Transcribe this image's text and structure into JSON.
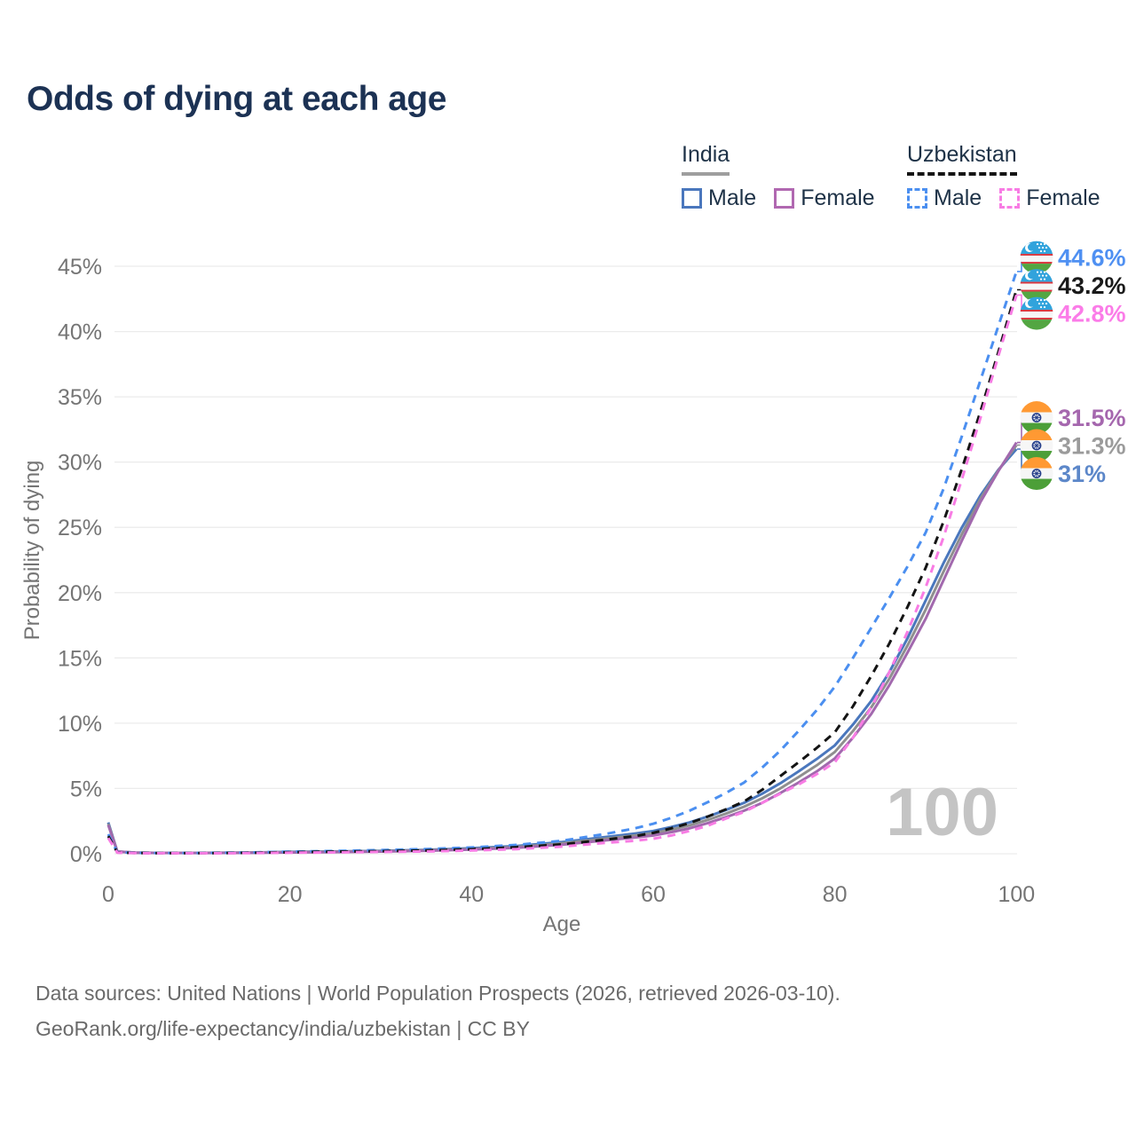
{
  "title": {
    "text": "Odds of dying at each age",
    "color": "#1c3254"
  },
  "legend": {
    "groups": [
      {
        "id": "india",
        "label": "India",
        "underline": "solid",
        "underline_color": "#9e9e9e",
        "items": [
          {
            "label": "Male",
            "box_color": "#4a77bd",
            "box_style": "solid"
          },
          {
            "label": "Female",
            "box_color": "#b168b1",
            "box_style": "solid"
          }
        ]
      },
      {
        "id": "uzbekistan",
        "label": "Uzbekistan",
        "underline": "dashed",
        "underline_color": "#151515",
        "items": [
          {
            "label": "Male",
            "box_color": "#4b8ff0",
            "box_style": "dashed"
          },
          {
            "label": "Female",
            "box_color": "#f87ce4",
            "box_style": "dashed"
          }
        ]
      }
    ]
  },
  "chart_data": {
    "type": "line",
    "title": "Odds of dying at each age",
    "xlabel": "Age",
    "ylabel": "Probability of dying",
    "xlim": [
      0,
      100
    ],
    "ylim": [
      0,
      45
    ],
    "x_ticks": [
      0,
      20,
      40,
      60,
      80,
      100
    ],
    "y_tick_step": 5,
    "y_tick_suffix": "%",
    "grid": "horizontal",
    "gridline_color": "#ececec",
    "tick_color": "#757575",
    "watermark": "100",
    "watermark_color": "#c4c4c4",
    "legend_position": "top-right",
    "series": [
      {
        "name": "india-male",
        "country": "india",
        "sex": "male",
        "color": "#4a77bd",
        "dashed": false,
        "end_label": {
          "text": "31%",
          "color": "#5c87c9",
          "flag": "india"
        },
        "points": [
          [
            0,
            2.4
          ],
          [
            1,
            0.16
          ],
          [
            3,
            0.08
          ],
          [
            5,
            0.07
          ],
          [
            10,
            0.07
          ],
          [
            15,
            0.09
          ],
          [
            20,
            0.14
          ],
          [
            25,
            0.18
          ],
          [
            30,
            0.22
          ],
          [
            35,
            0.3
          ],
          [
            40,
            0.42
          ],
          [
            45,
            0.6
          ],
          [
            50,
            0.9
          ],
          [
            55,
            1.3
          ],
          [
            58,
            1.55
          ],
          [
            60,
            1.75
          ],
          [
            62,
            2.05
          ],
          [
            64,
            2.4
          ],
          [
            66,
            2.85
          ],
          [
            68,
            3.35
          ],
          [
            70,
            3.9
          ],
          [
            72,
            4.6
          ],
          [
            74,
            5.4
          ],
          [
            76,
            6.3
          ],
          [
            78,
            7.25
          ],
          [
            80,
            8.3
          ],
          [
            82,
            9.9
          ],
          [
            84,
            11.7
          ],
          [
            86,
            13.9
          ],
          [
            88,
            16.5
          ],
          [
            90,
            19.4
          ],
          [
            92,
            22.3
          ],
          [
            94,
            25.0
          ],
          [
            96,
            27.4
          ],
          [
            98,
            29.4
          ],
          [
            100,
            31.0
          ]
        ]
      },
      {
        "name": "india-average",
        "country": "india",
        "sex": "both",
        "color": "#8f8f8f",
        "dashed": false,
        "end_label": {
          "text": "31.3%",
          "color": "#9b9b9b",
          "flag": "india"
        },
        "points": [
          [
            0,
            2.3
          ],
          [
            1,
            0.17
          ],
          [
            3,
            0.09
          ],
          [
            5,
            0.07
          ],
          [
            10,
            0.07
          ],
          [
            15,
            0.08
          ],
          [
            20,
            0.12
          ],
          [
            25,
            0.16
          ],
          [
            30,
            0.2
          ],
          [
            35,
            0.27
          ],
          [
            40,
            0.37
          ],
          [
            45,
            0.53
          ],
          [
            50,
            0.8
          ],
          [
            55,
            1.17
          ],
          [
            58,
            1.4
          ],
          [
            60,
            1.57
          ],
          [
            62,
            1.85
          ],
          [
            64,
            2.17
          ],
          [
            66,
            2.6
          ],
          [
            68,
            3.07
          ],
          [
            70,
            3.6
          ],
          [
            72,
            4.25
          ],
          [
            74,
            5.0
          ],
          [
            76,
            5.87
          ],
          [
            78,
            6.77
          ],
          [
            80,
            7.8
          ],
          [
            82,
            9.4
          ],
          [
            84,
            11.2
          ],
          [
            86,
            13.4
          ],
          [
            88,
            15.95
          ],
          [
            90,
            18.7
          ],
          [
            92,
            21.65
          ],
          [
            94,
            24.5
          ],
          [
            96,
            27.15
          ],
          [
            98,
            29.35
          ],
          [
            100,
            31.3
          ]
        ]
      },
      {
        "name": "india-female",
        "country": "india",
        "sex": "female",
        "color": "#a269ae",
        "dashed": false,
        "end_label": {
          "text": "31.5%",
          "color": "#a567ae",
          "flag": "india"
        },
        "points": [
          [
            0,
            2.2
          ],
          [
            1,
            0.17
          ],
          [
            3,
            0.09
          ],
          [
            5,
            0.07
          ],
          [
            10,
            0.06
          ],
          [
            15,
            0.07
          ],
          [
            20,
            0.1
          ],
          [
            25,
            0.13
          ],
          [
            30,
            0.17
          ],
          [
            35,
            0.23
          ],
          [
            40,
            0.32
          ],
          [
            45,
            0.46
          ],
          [
            50,
            0.7
          ],
          [
            55,
            1.05
          ],
          [
            58,
            1.25
          ],
          [
            60,
            1.4
          ],
          [
            62,
            1.65
          ],
          [
            64,
            1.95
          ],
          [
            66,
            2.35
          ],
          [
            68,
            2.8
          ],
          [
            70,
            3.3
          ],
          [
            72,
            3.9
          ],
          [
            74,
            4.65
          ],
          [
            76,
            5.45
          ],
          [
            78,
            6.3
          ],
          [
            80,
            7.3
          ],
          [
            82,
            8.9
          ],
          [
            84,
            10.7
          ],
          [
            86,
            12.9
          ],
          [
            88,
            15.4
          ],
          [
            90,
            18.0
          ],
          [
            92,
            21.0
          ],
          [
            94,
            24.0
          ],
          [
            96,
            26.9
          ],
          [
            98,
            29.3
          ],
          [
            100,
            31.5
          ]
        ]
      },
      {
        "name": "uzbekistan-male",
        "country": "uzbekistan",
        "sex": "male",
        "color": "#4b8ff0",
        "dashed": true,
        "end_label": {
          "text": "44.6%",
          "color": "#4f90f2",
          "flag": "uzbekistan"
        },
        "points": [
          [
            0,
            1.5
          ],
          [
            1,
            0.12
          ],
          [
            3,
            0.07
          ],
          [
            5,
            0.06
          ],
          [
            10,
            0.06
          ],
          [
            15,
            0.09
          ],
          [
            20,
            0.16
          ],
          [
            25,
            0.22
          ],
          [
            30,
            0.28
          ],
          [
            35,
            0.36
          ],
          [
            40,
            0.48
          ],
          [
            45,
            0.68
          ],
          [
            50,
            1.0
          ],
          [
            55,
            1.55
          ],
          [
            58,
            1.95
          ],
          [
            60,
            2.3
          ],
          [
            62,
            2.75
          ],
          [
            64,
            3.3
          ],
          [
            66,
            3.95
          ],
          [
            68,
            4.65
          ],
          [
            70,
            5.45
          ],
          [
            72,
            6.6
          ],
          [
            74,
            7.9
          ],
          [
            76,
            9.4
          ],
          [
            78,
            11.0
          ],
          [
            80,
            12.8
          ],
          [
            82,
            15.0
          ],
          [
            84,
            17.3
          ],
          [
            86,
            19.6
          ],
          [
            88,
            22.0
          ],
          [
            90,
            24.6
          ],
          [
            92,
            28.0
          ],
          [
            94,
            32.0
          ],
          [
            96,
            36.2
          ],
          [
            98,
            40.4
          ],
          [
            100,
            44.6
          ]
        ]
      },
      {
        "name": "uzbekistan-average",
        "country": "uzbekistan",
        "sex": "both",
        "color": "#141414",
        "dashed": true,
        "end_label": {
          "text": "43.2%",
          "color": "#1a1a1a",
          "flag": "uzbekistan"
        },
        "points": [
          [
            0,
            1.35
          ],
          [
            1,
            0.1
          ],
          [
            3,
            0.06
          ],
          [
            5,
            0.05
          ],
          [
            10,
            0.05
          ],
          [
            15,
            0.07
          ],
          [
            20,
            0.12
          ],
          [
            25,
            0.16
          ],
          [
            30,
            0.2
          ],
          [
            35,
            0.26
          ],
          [
            40,
            0.35
          ],
          [
            45,
            0.5
          ],
          [
            50,
            0.72
          ],
          [
            55,
            1.1
          ],
          [
            58,
            1.35
          ],
          [
            60,
            1.6
          ],
          [
            62,
            1.95
          ],
          [
            64,
            2.35
          ],
          [
            66,
            2.85
          ],
          [
            68,
            3.4
          ],
          [
            70,
            4.0
          ],
          [
            72,
            4.9
          ],
          [
            74,
            5.95
          ],
          [
            76,
            7.0
          ],
          [
            78,
            8.1
          ],
          [
            80,
            9.3
          ],
          [
            82,
            11.3
          ],
          [
            84,
            13.6
          ],
          [
            86,
            16.1
          ],
          [
            88,
            18.9
          ],
          [
            90,
            21.9
          ],
          [
            92,
            25.5
          ],
          [
            94,
            29.5
          ],
          [
            96,
            33.8
          ],
          [
            98,
            38.4
          ],
          [
            100,
            43.2
          ]
        ]
      },
      {
        "name": "uzbekistan-female",
        "country": "uzbekistan",
        "sex": "female",
        "color": "#f87ce4",
        "dashed": true,
        "end_label": {
          "text": "42.8%",
          "color": "#fb7ce8",
          "flag": "uzbekistan"
        },
        "points": [
          [
            0,
            1.2
          ],
          [
            1,
            0.09
          ],
          [
            3,
            0.05
          ],
          [
            5,
            0.04
          ],
          [
            10,
            0.04
          ],
          [
            15,
            0.05
          ],
          [
            20,
            0.08
          ],
          [
            25,
            0.11
          ],
          [
            30,
            0.14
          ],
          [
            35,
            0.18
          ],
          [
            40,
            0.25
          ],
          [
            45,
            0.36
          ],
          [
            50,
            0.55
          ],
          [
            55,
            0.85
          ],
          [
            58,
            1.0
          ],
          [
            60,
            1.15
          ],
          [
            62,
            1.4
          ],
          [
            64,
            1.75
          ],
          [
            66,
            2.15
          ],
          [
            68,
            2.7
          ],
          [
            70,
            3.2
          ],
          [
            72,
            3.9
          ],
          [
            74,
            4.6
          ],
          [
            76,
            5.3
          ],
          [
            78,
            6.1
          ],
          [
            80,
            7.0
          ],
          [
            82,
            8.9
          ],
          [
            84,
            11.2
          ],
          [
            86,
            13.9
          ],
          [
            88,
            17.0
          ],
          [
            90,
            20.4
          ],
          [
            92,
            24.3
          ],
          [
            94,
            28.7
          ],
          [
            96,
            33.3
          ],
          [
            98,
            38.1
          ],
          [
            100,
            42.8
          ]
        ]
      }
    ]
  },
  "footer": {
    "line1": "Data sources: United Nations | World Population Prospects (2026, retrieved 2026-03-10).",
    "line2": "GeoRank.org/life-expectancy/india/uzbekistan | CC BY"
  }
}
